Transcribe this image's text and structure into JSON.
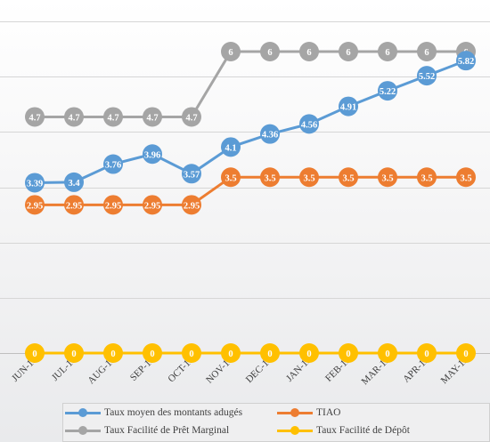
{
  "chart_data": {
    "type": "line",
    "categories": [
      "JUN-18",
      "JUL-18",
      "AUG-18",
      "SEP-18",
      "OCT-18",
      "NOV-18",
      "DEC-18",
      "JAN-19",
      "FEB-19",
      "MAR-19",
      "APR-19",
      "MAY-19"
    ],
    "ylim": [
      0,
      6.6
    ],
    "grid": true,
    "legend_position": "bottom",
    "series": [
      {
        "key": "taux_moyen",
        "name": "Taux moyen des montants adugés",
        "color": "#5b9bd5",
        "values": [
          3.39,
          3.4,
          3.76,
          3.96,
          3.57,
          4.1,
          4.36,
          4.56,
          4.91,
          5.22,
          5.52,
          5.82
        ],
        "labels": [
          "3.39",
          "3.4",
          "3.76",
          "3.96",
          "3.57",
          "4.1",
          "4.36",
          "4.56",
          "4.91",
          "5.22",
          "5.52",
          "5.82"
        ]
      },
      {
        "key": "tiao",
        "name": "TIAO",
        "color": "#ed7d31",
        "values": [
          2.95,
          2.95,
          2.95,
          2.95,
          2.95,
          3.5,
          3.5,
          3.5,
          3.5,
          3.5,
          3.5,
          3.5
        ],
        "labels": [
          "2.95",
          "2.95",
          "2.95",
          "2.95",
          "2.95",
          "3.5",
          "3.5",
          "3.5",
          "3.5",
          "3.5",
          "3.5",
          "3.5"
        ]
      },
      {
        "key": "pret_marginal",
        "name": "Taux Facilité de Prêt Marginal",
        "color": "#a5a5a5",
        "values": [
          4.7,
          4.7,
          4.7,
          4.7,
          4.7,
          6,
          6,
          6,
          6,
          6,
          6,
          6
        ],
        "labels": [
          "4.7",
          "4.7",
          "4.7",
          "4.7",
          "4.7",
          "6",
          "6",
          "6",
          "6",
          "6",
          "6",
          "6"
        ]
      },
      {
        "key": "depot",
        "name": "Taux Facilité de Dépôt",
        "color": "#ffc000",
        "values": [
          0,
          0,
          0,
          0,
          0,
          0,
          0,
          0,
          0,
          0,
          0,
          0
        ],
        "labels": [
          "0",
          "0",
          "0",
          "0",
          "0",
          "0",
          "0",
          "0",
          "0",
          "0",
          "0",
          "0"
        ]
      }
    ]
  }
}
